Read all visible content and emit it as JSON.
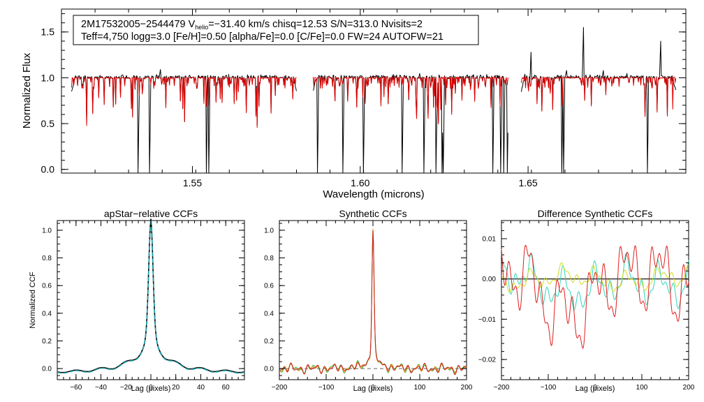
{
  "chart_data": [
    {
      "type": "line",
      "id": "spectrum",
      "xlabel": "Wavelength (microns)",
      "ylabel": "Normalized Flux",
      "xlim": [
        1.511,
        1.697
      ],
      "ylim": [
        -0.04,
        1.75
      ],
      "x_ticks": [
        1.55,
        1.6,
        1.65
      ],
      "x_tick_labels": [
        "1.55",
        "1.60",
        "1.65"
      ],
      "y_ticks": [
        0.0,
        0.5,
        1.0,
        1.5
      ],
      "y_tick_labels": [
        "0.0",
        "0.5",
        "1.0",
        "1.5"
      ],
      "annotation": {
        "line1_prefix": "2M17532005−2544479  V",
        "line1_sub": "helio",
        "line1_rest": "=−31.40 km/s  chisq=12.53  S/N=313.0  Nvisits=2",
        "line2": "Teff=4,750 logg=3.0 [Fe/H]=0.50 [alpha/Fe]=0.0 [C/Fe]=0.0 FW=24 AUTOFW=21"
      },
      "chips": [
        [
          1.514,
          1.581
        ],
        [
          1.586,
          1.644
        ],
        [
          1.648,
          1.694
        ]
      ],
      "series": [
        {
          "name": "observed",
          "color": "#000000"
        },
        {
          "name": "model",
          "color": "#e00000"
        }
      ],
      "deep_lines": [
        1.5338,
        1.5373,
        1.5542,
        1.5548,
        1.5873,
        1.5948,
        1.601,
        1.6125,
        1.619,
        1.6225,
        1.6243,
        1.6248,
        1.6395,
        1.6418,
        1.6428,
        1.6438,
        1.66,
        1.6605,
        1.6855
      ],
      "emission_lines": [
        {
          "x": 1.5405,
          "y": 1.09
        },
        {
          "x": 1.6508,
          "y": 1.28
        },
        {
          "x": 1.6615,
          "y": 1.08
        },
        {
          "x": 1.6665,
          "y": 1.55
        },
        {
          "x": 1.6725,
          "y": 1.08
        },
        {
          "x": 1.6895,
          "y": 1.4
        }
      ]
    },
    {
      "type": "line",
      "id": "apstar-ccf",
      "title": "apStar−relative CCFs",
      "xlabel": "Lag (pixels)",
      "ylabel": "Normalized CCF",
      "xlim": [
        -75,
        75
      ],
      "ylim": [
        -0.08,
        1.07
      ],
      "x_ticks": [
        -60,
        -40,
        -20,
        0,
        20,
        40,
        60
      ],
      "x_tick_labels": [
        "−60",
        "−40",
        "−20",
        "0",
        "20",
        "40",
        "60"
      ],
      "y_ticks": [
        0.0,
        0.2,
        0.4,
        0.6,
        0.8,
        1.0
      ],
      "y_tick_labels": [
        "0.0",
        "0.2",
        "0.4",
        "0.6",
        "0.8",
        "1.0"
      ],
      "series": [
        {
          "name": "ccf",
          "color": "#000000"
        },
        {
          "name": "ccf-visit",
          "color": "#1aa6b0"
        }
      ]
    },
    {
      "type": "line",
      "id": "synthetic-ccf",
      "title": "Synthetic CCFs",
      "xlabel": "Lag (pixels)",
      "ylabel": "",
      "xlim": [
        -200,
        200
      ],
      "ylim": [
        -0.08,
        1.07
      ],
      "x_ticks": [
        -200,
        -100,
        0,
        100,
        200
      ],
      "x_tick_labels": [
        "−200",
        "−100",
        "0",
        "100",
        "200"
      ],
      "y_ticks": [
        0.0,
        0.2,
        0.4,
        0.6,
        0.8,
        1.0
      ],
      "y_tick_labels": [
        "0.0",
        "0.2",
        "0.4",
        "0.6",
        "0.8",
        "1.0"
      ],
      "series": [
        {
          "name": "green",
          "color": "#2eb82e"
        },
        {
          "name": "orange",
          "color": "#e88a1a"
        },
        {
          "name": "red",
          "color": "#c81e1e"
        }
      ]
    },
    {
      "type": "line",
      "id": "difference-ccf",
      "title": "Difference Synthetic CCFs",
      "xlabel": "Lag (pixels)",
      "ylabel": "",
      "xlim": [
        -200,
        200
      ],
      "ylim": [
        -0.025,
        0.0145
      ],
      "x_ticks": [
        -200,
        -100,
        0,
        100,
        200
      ],
      "x_tick_labels": [
        "−200",
        "−100",
        "0",
        "100",
        "200"
      ],
      "y_ticks": [
        -0.02,
        -0.01,
        0.0,
        0.01
      ],
      "y_tick_labels": [
        "−0.02",
        "−0.01",
        "0.00",
        "0.01"
      ],
      "series": [
        {
          "name": "cyan",
          "color": "#2fd6b8"
        },
        {
          "name": "yellow",
          "color": "#cfdc1e"
        },
        {
          "name": "red",
          "color": "#e01e1e"
        }
      ]
    }
  ]
}
